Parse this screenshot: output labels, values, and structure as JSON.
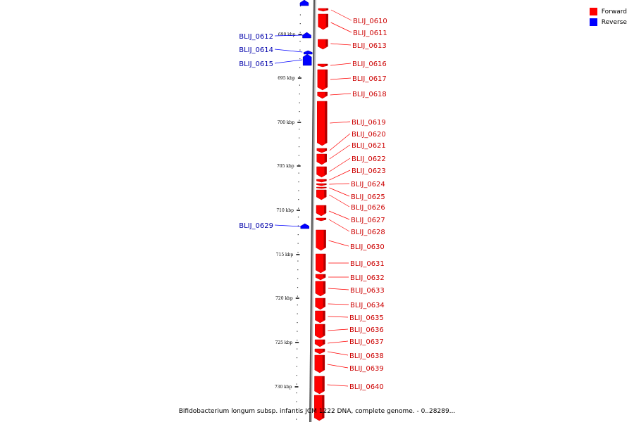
{
  "legend": {
    "forward_label": "Forward",
    "reverse_label": "Reverse",
    "forward_color": "#ff0000",
    "reverse_color": "#0000ff"
  },
  "caption": "Bifidobacterium longum subsp. infantis JCM 1222 DNA, complete genome. - 0..28289...",
  "ticks": [
    "690 kbp",
    "695 kbp",
    "700 kbp",
    "705 kbp",
    "710 kbp",
    "715 kbp",
    "720 kbp",
    "725 kbp",
    "730 kbp"
  ],
  "reverse_genes": [
    "BLIJ_0612",
    "BLIJ_0614",
    "BLIJ_0615",
    "BLIJ_0629"
  ],
  "forward_genes": [
    "BLIJ_0610",
    "BLIJ_0611",
    "BLIJ_0613",
    "BLIJ_0616",
    "BLIJ_0617",
    "BLIJ_0618",
    "BLIJ_0619",
    "BLIJ_0620",
    "BLIJ_0621",
    "BLIJ_0622",
    "BLIJ_0623",
    "BLIJ_0624",
    "BLIJ_0625",
    "BLIJ_0626",
    "BLIJ_0627",
    "BLIJ_0628",
    "BLIJ_0630",
    "BLIJ_0631",
    "BLIJ_0632",
    "BLIJ_0633",
    "BLIJ_0634",
    "BLIJ_0635",
    "BLIJ_0636",
    "BLIJ_0637",
    "BLIJ_0638",
    "BLIJ_0639",
    "BLIJ_0640"
  ]
}
